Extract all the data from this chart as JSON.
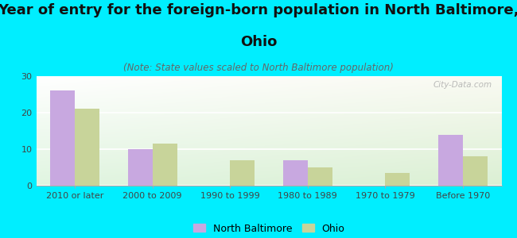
{
  "title_line1": "Year of entry for the foreign-born population in North Baltimore,",
  "title_line2": "Ohio",
  "subtitle": "(Note: State values scaled to North Baltimore population)",
  "categories": [
    "2010 or later",
    "2000 to 2009",
    "1990 to 1999",
    "1980 to 1989",
    "1970 to 1979",
    "Before 1970"
  ],
  "north_baltimore": [
    26,
    10,
    0,
    7,
    0,
    14
  ],
  "ohio": [
    21,
    11.5,
    7,
    5,
    3.5,
    8
  ],
  "nb_color": "#c8a8e0",
  "ohio_color": "#c8d49a",
  "background_color": "#00eeff",
  "ylim": [
    0,
    30
  ],
  "yticks": [
    0,
    10,
    20,
    30
  ],
  "bar_width": 0.32,
  "title_fontsize": 13,
  "subtitle_fontsize": 8.5,
  "tick_fontsize": 8,
  "legend_labels": [
    "North Baltimore",
    "Ohio"
  ],
  "watermark": "City-Data.com"
}
